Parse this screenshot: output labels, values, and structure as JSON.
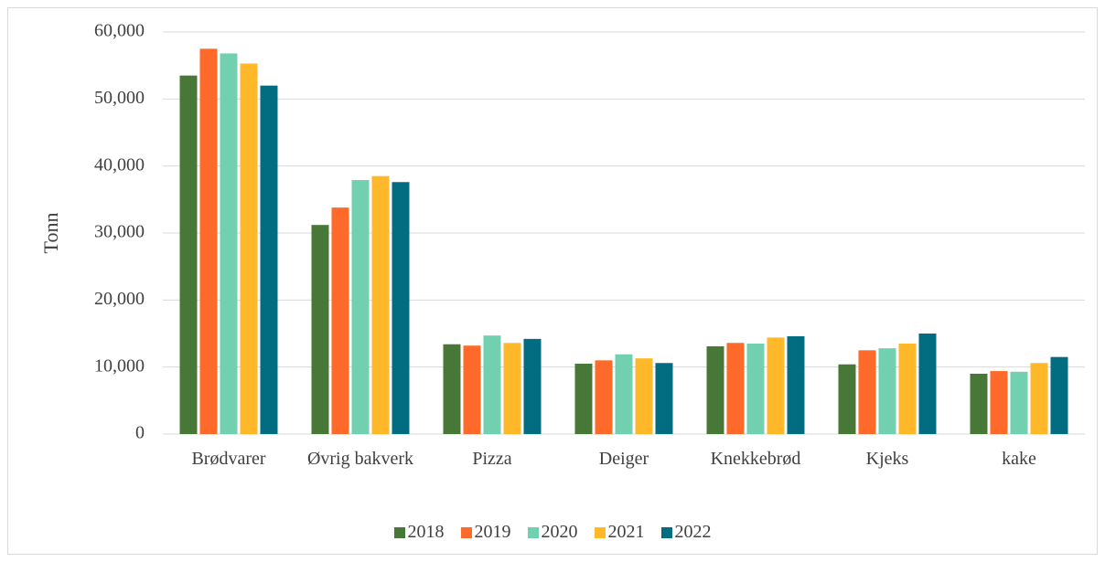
{
  "chart_data": {
    "type": "bar",
    "y_label": "Tonn",
    "categories": [
      "Brødvarer",
      "Øvrig bakverk",
      "Pizza",
      "Deiger",
      "Knekkebrød",
      "Kjeks",
      "kake"
    ],
    "series": [
      {
        "name": "2018",
        "color": "#487838",
        "values": [
          53500,
          31200,
          13400,
          10500,
          13100,
          10400,
          9000
        ]
      },
      {
        "name": "2019",
        "color": "#ff6a2a",
        "values": [
          57500,
          33800,
          13200,
          11000,
          13600,
          12500,
          9400
        ]
      },
      {
        "name": "2020",
        "color": "#70d0b0",
        "values": [
          56800,
          37900,
          14700,
          11900,
          13500,
          12800,
          9300
        ]
      },
      {
        "name": "2021",
        "color": "#ffb829",
        "values": [
          55300,
          38500,
          13600,
          11300,
          14400,
          13500,
          10600
        ]
      },
      {
        "name": "2022",
        "color": "#026c80",
        "values": [
          52000,
          37600,
          14200,
          10600,
          14600,
          15000,
          11500
        ]
      }
    ],
    "ylim": [
      0,
      60000
    ],
    "yticks": [
      0,
      {
        "value": 10000,
        "label": "10,000"
      },
      {
        "value": 20000,
        "label": "20,000"
      },
      {
        "value": 30000,
        "label": "30,000"
      },
      {
        "value": 40000,
        "label": "40,000"
      },
      {
        "value": 50000,
        "label": "50,000"
      },
      {
        "value": 60000,
        "label": "60,000"
      }
    ],
    "grid": true,
    "legend": "bottom"
  }
}
